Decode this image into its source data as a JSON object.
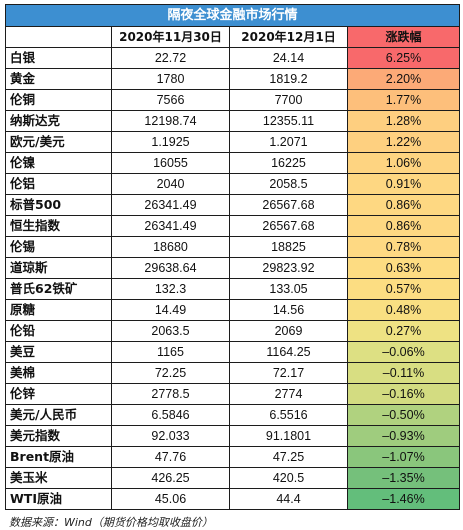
{
  "title": "隔夜全球金融市场行情",
  "headers": [
    "",
    "2020年11月30日",
    "2020年12月1日",
    "涨跌幅"
  ],
  "colors": {
    "title_bg": "#3d8fd1",
    "header_change_bg": "#f8696b"
  },
  "rows": [
    {
      "name": "白银",
      "v1": "22.72",
      "v2": "24.14",
      "change": "6.25%",
      "color": "#f8696b"
    },
    {
      "name": "黄金",
      "v1": "1780",
      "v2": "1819.2",
      "change": "2.20%",
      "color": "#fcaa77"
    },
    {
      "name": "伦铜",
      "v1": "7566",
      "v2": "7700",
      "change": "1.77%",
      "color": "#fdbf7b"
    },
    {
      "name": "纳斯达克",
      "v1": "12198.74",
      "v2": "12355.11",
      "change": "1.28%",
      "color": "#fecf80"
    },
    {
      "name": "欧元/美元",
      "v1": "1.1925",
      "v2": "1.2071",
      "change": "1.22%",
      "color": "#fed080"
    },
    {
      "name": "伦镍",
      "v1": "16055",
      "v2": "16225",
      "change": "1.06%",
      "color": "#fed481"
    },
    {
      "name": "伦铝",
      "v1": "2040",
      "v2": "2058.5",
      "change": "0.91%",
      "color": "#fed782"
    },
    {
      "name": "标普500",
      "v1": "26341.49",
      "v2": "26567.68",
      "change": "0.86%",
      "color": "#fed882"
    },
    {
      "name": "恒生指数",
      "v1": "26341.49",
      "v2": "26567.68",
      "change": "0.86%",
      "color": "#fed882"
    },
    {
      "name": "伦锡",
      "v1": "18680",
      "v2": "18825",
      "change": "0.78%",
      "color": "#fed983"
    },
    {
      "name": "道琼斯",
      "v1": "29638.64",
      "v2": "29823.92",
      "change": "0.63%",
      "color": "#fddc82"
    },
    {
      "name": "普氏62铁矿",
      "v1": "132.3",
      "v2": "133.05",
      "change": "0.57%",
      "color": "#fcdd82"
    },
    {
      "name": "原糖",
      "v1": "14.49",
      "v2": "14.56",
      "change": "0.48%",
      "color": "#f9df82"
    },
    {
      "name": "伦铅",
      "v1": "2063.5",
      "v2": "2069",
      "change": "0.27%",
      "color": "#eee283"
    },
    {
      "name": "美豆",
      "v1": "1165",
      "v2": "1164.25",
      "change": "–0.06%",
      "color": "#dde083"
    },
    {
      "name": "美棉",
      "v1": "72.25",
      "v2": "72.17",
      "change": "–0.11%",
      "color": "#d8de82"
    },
    {
      "name": "伦锌",
      "v1": "2778.5",
      "v2": "2774",
      "change": "–0.16%",
      "color": "#d3dc81"
    },
    {
      "name": "美元/人民币",
      "v1": "6.5846",
      "v2": "6.5516",
      "change": "–0.50%",
      "color": "#b0d27f"
    },
    {
      "name": "美元指数",
      "v1": "92.033",
      "v2": "91.1801",
      "change": "–0.93%",
      "color": "#9fcc7e"
    },
    {
      "name": "Brent原油",
      "v1": "47.76",
      "v2": "47.25",
      "change": "–1.07%",
      "color": "#8ac67c"
    },
    {
      "name": "美玉米",
      "v1": "426.25",
      "v2": "420.5",
      "change": "–1.35%",
      "color": "#75c07b"
    },
    {
      "name": "WTI原油",
      "v1": "45.06",
      "v2": "44.4",
      "change": "–1.46%",
      "color": "#63be7b"
    }
  ],
  "source": "数据来源：Wind（期货价格均取收盘价）"
}
